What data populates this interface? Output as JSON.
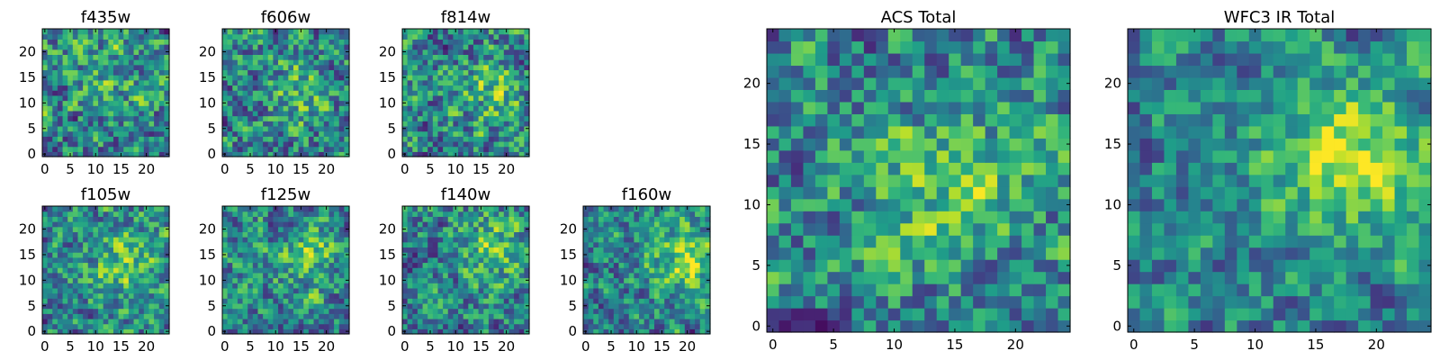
{
  "colormap": {
    "name": "viridis",
    "stops": [
      "#440154",
      "#482878",
      "#3e4989",
      "#31688e",
      "#26828e",
      "#1f9e89",
      "#35b779",
      "#6ece58",
      "#b5de2b",
      "#fde725"
    ]
  },
  "chart_data": [
    {
      "type": "heatmap",
      "title": "f435w",
      "xlim": [
        0,
        24
      ],
      "ylim": [
        0,
        24
      ],
      "xticks": [
        0,
        5,
        10,
        15,
        20
      ],
      "yticks": [
        0,
        5,
        10,
        15,
        20
      ],
      "grid_size": 25,
      "peak": {
        "x": 14,
        "y": 15
      },
      "peak_strength": 0.18,
      "noise": 0.34,
      "seed": 11
    },
    {
      "type": "heatmap",
      "title": "f606w",
      "xlim": [
        0,
        24
      ],
      "ylim": [
        0,
        24
      ],
      "xticks": [
        0,
        5,
        10,
        15,
        20
      ],
      "yticks": [
        0,
        5,
        10,
        15,
        20
      ],
      "grid_size": 25,
      "peak": {
        "x": 14,
        "y": 12
      },
      "peak_strength": 0.22,
      "noise": 0.34,
      "seed": 23
    },
    {
      "type": "heatmap",
      "title": "f814w",
      "xlim": [
        0,
        24
      ],
      "ylim": [
        0,
        24
      ],
      "xticks": [
        0,
        5,
        10,
        15,
        20
      ],
      "yticks": [
        0,
        5,
        10,
        15,
        20
      ],
      "grid_size": 25,
      "peak": {
        "x": 17,
        "y": 12
      },
      "peak_strength": 0.25,
      "noise": 0.34,
      "seed": 37
    },
    {
      "type": "heatmap",
      "title": "f105w",
      "xlim": [
        0,
        24
      ],
      "ylim": [
        0,
        24
      ],
      "xticks": [
        0,
        5,
        10,
        15,
        20
      ],
      "yticks": [
        0,
        5,
        10,
        15,
        20
      ],
      "grid_size": 25,
      "peak": {
        "x": 15,
        "y": 13
      },
      "peak_strength": 0.32,
      "noise": 0.3,
      "seed": 41
    },
    {
      "type": "heatmap",
      "title": "f125w",
      "xlim": [
        0,
        24
      ],
      "ylim": [
        0,
        24
      ],
      "xticks": [
        0,
        5,
        10,
        15,
        20
      ],
      "yticks": [
        0,
        5,
        10,
        15,
        20
      ],
      "grid_size": 25,
      "peak": {
        "x": 18,
        "y": 15
      },
      "peak_strength": 0.28,
      "noise": 0.3,
      "seed": 53
    },
    {
      "type": "heatmap",
      "title": "f140w",
      "xlim": [
        0,
        24
      ],
      "ylim": [
        0,
        24
      ],
      "xticks": [
        0,
        5,
        10,
        15,
        20
      ],
      "yticks": [
        0,
        5,
        10,
        15,
        20
      ],
      "grid_size": 25,
      "peak": {
        "x": 18,
        "y": 16
      },
      "peak_strength": 0.3,
      "noise": 0.3,
      "seed": 67
    },
    {
      "type": "heatmap",
      "title": "f160w",
      "xlim": [
        0,
        24
      ],
      "ylim": [
        0,
        24
      ],
      "xticks": [
        0,
        5,
        10,
        15,
        20
      ],
      "yticks": [
        0,
        5,
        10,
        15,
        20
      ],
      "grid_size": 25,
      "peak": {
        "x": 19,
        "y": 14
      },
      "peak_strength": 0.38,
      "noise": 0.28,
      "seed": 79
    },
    {
      "type": "heatmap",
      "title": "ACS Total",
      "xlim": [
        0,
        24
      ],
      "ylim": [
        0,
        24
      ],
      "xticks": [
        0,
        5,
        10,
        15,
        20
      ],
      "yticks": [
        0,
        5,
        10,
        15,
        20
      ],
      "grid_size": 25,
      "peak": {
        "x": 14,
        "y": 12
      },
      "peak_strength": 0.26,
      "noise": 0.3,
      "seed": 97
    },
    {
      "type": "heatmap",
      "title": "WFC3 IR Total",
      "xlim": [
        0,
        24
      ],
      "ylim": [
        0,
        24
      ],
      "xticks": [
        0,
        5,
        10,
        15,
        20
      ],
      "yticks": [
        0,
        5,
        10,
        15,
        20
      ],
      "grid_size": 25,
      "peak": {
        "x": 18,
        "y": 14
      },
      "peak_strength": 0.42,
      "noise": 0.24,
      "seed": 113
    }
  ]
}
